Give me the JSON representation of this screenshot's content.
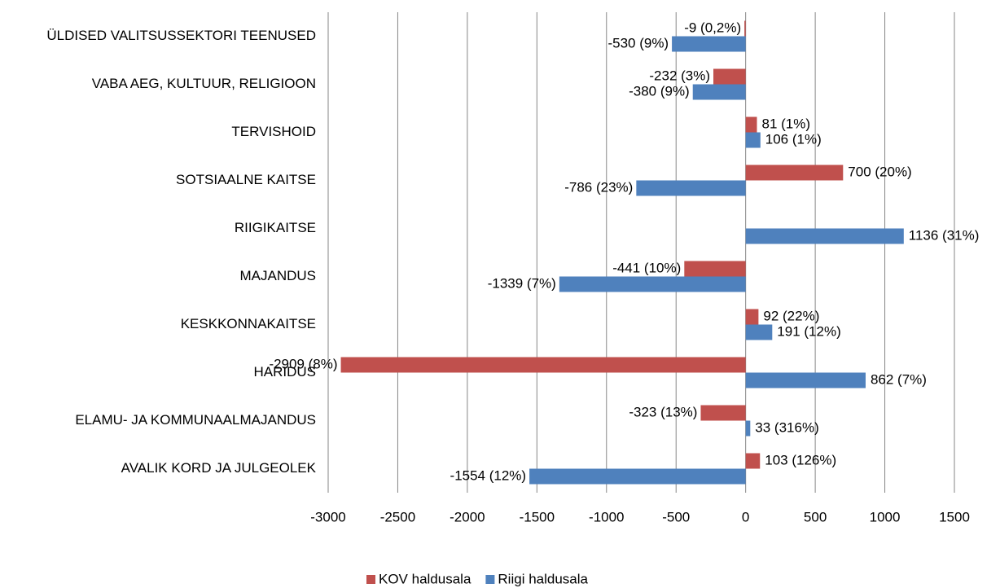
{
  "chart_data": {
    "type": "bar",
    "orientation": "horizontal",
    "categories": [
      "ÜLDISED VALITSUSSEKTORI TEENUSED",
      "VABA AEG, KULTUUR, RELIGIOON",
      "TERVISHOID",
      "SOTSIAALNE KAITSE",
      "RIIGIKAITSE",
      "MAJANDUS",
      "KESKKONNAKAITSE",
      "HARIDUS",
      "ELAMU- JA KOMMUNAALMAJANDUS",
      "AVALIK KORD JA JULGEOLEK"
    ],
    "series": [
      {
        "name": "KOV haldusala",
        "color": "#c0504d",
        "values": [
          -9,
          -232,
          81,
          700,
          null,
          -441,
          92,
          -2909,
          -323,
          103
        ],
        "value_labels": [
          "-9 (0,2%)",
          "-232 (3%)",
          "81 (1%)",
          "700 (20%)",
          null,
          "-441 (10%)",
          "92 (22%)",
          "-2909 (8%)",
          "-323 (13%)",
          "103 (126%)"
        ]
      },
      {
        "name": "Riigi haldusala",
        "color": "#4f81bd",
        "values": [
          -530,
          -380,
          106,
          -786,
          1136,
          -1339,
          191,
          862,
          33,
          -1554
        ],
        "value_labels": [
          "-530 (9%)",
          "-380 (9%)",
          "106 (1%)",
          "-786 (23%)",
          "1136 (31%)",
          "-1339 (7%)",
          "191 (12%)",
          "862 (7%)",
          "33 (316%)",
          "-1554 (12%)"
        ]
      }
    ],
    "xlim": [
      -3000,
      1500
    ],
    "xticks": [
      -3000,
      -2500,
      -2000,
      -1500,
      -1000,
      -500,
      0,
      500,
      1000,
      1500
    ],
    "grid": true,
    "legend": "bottom"
  }
}
